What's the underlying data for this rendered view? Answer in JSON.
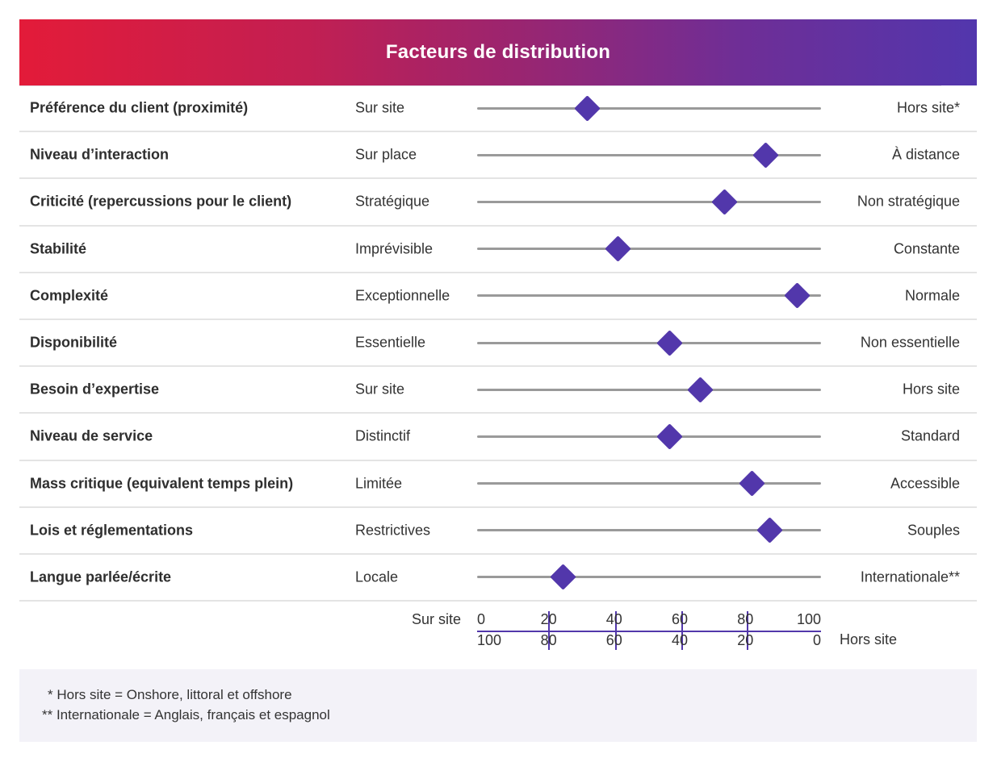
{
  "title": "Facteurs de distribution",
  "colors": {
    "gradient_start": "#e31b39",
    "gradient_end": "#5236ad",
    "marker": "#5237ab",
    "track": "#9a9a9a",
    "notes_background": "#f3f2f8"
  },
  "chart_data": {
    "type": "scatter",
    "title": "Facteurs de distribution",
    "xlabel_left": "Sur site",
    "xlabel_right": "Hors site",
    "xlim": [
      0,
      100
    ],
    "grid": false,
    "top_ticks": [
      "0",
      "20",
      "40",
      "60",
      "80",
      "100"
    ],
    "bottom_ticks": [
      "100",
      "80",
      "60",
      "40",
      "20",
      "0"
    ],
    "rows": [
      {
        "factor": "Préférence du client (proximité)",
        "left": "Sur site",
        "right": "Hors site*",
        "value": 32
      },
      {
        "factor": "Niveau d’interaction",
        "left": "Sur place",
        "right": "À distance",
        "value": 84
      },
      {
        "factor": "Criticité (repercussions pour le client)",
        "left": "Stratégique",
        "right": "Non stratégique",
        "value": 72
      },
      {
        "factor": "Stabilité",
        "left": "Imprévisible",
        "right": "Constante",
        "value": 41
      },
      {
        "factor": "Complexité",
        "left": "Exceptionnelle",
        "right": "Normale",
        "value": 93
      },
      {
        "factor": "Disponibilité",
        "left": "Essentielle",
        "right": "Non essentielle",
        "value": 56
      },
      {
        "factor": "Besoin d’expertise",
        "left": "Sur site",
        "right": "Hors site",
        "value": 65
      },
      {
        "factor": "Niveau de service",
        "left": "Distinctif",
        "right": "Standard",
        "value": 56
      },
      {
        "factor": "Mass critique (equivalent temps plein)",
        "left": "Limitée",
        "right": "Accessible",
        "value": 80
      },
      {
        "factor": "Lois et réglementations",
        "left": "Restrictives",
        "right": "Souples",
        "value": 85
      },
      {
        "factor": "Langue parlée/écrite",
        "left": "Locale",
        "right": "Internationale**",
        "value": 25
      }
    ]
  },
  "notes": [
    "* Hors site  =  Onshore, littoral et offshore",
    "** Internationale  =  Anglais, français et espagnol"
  ]
}
